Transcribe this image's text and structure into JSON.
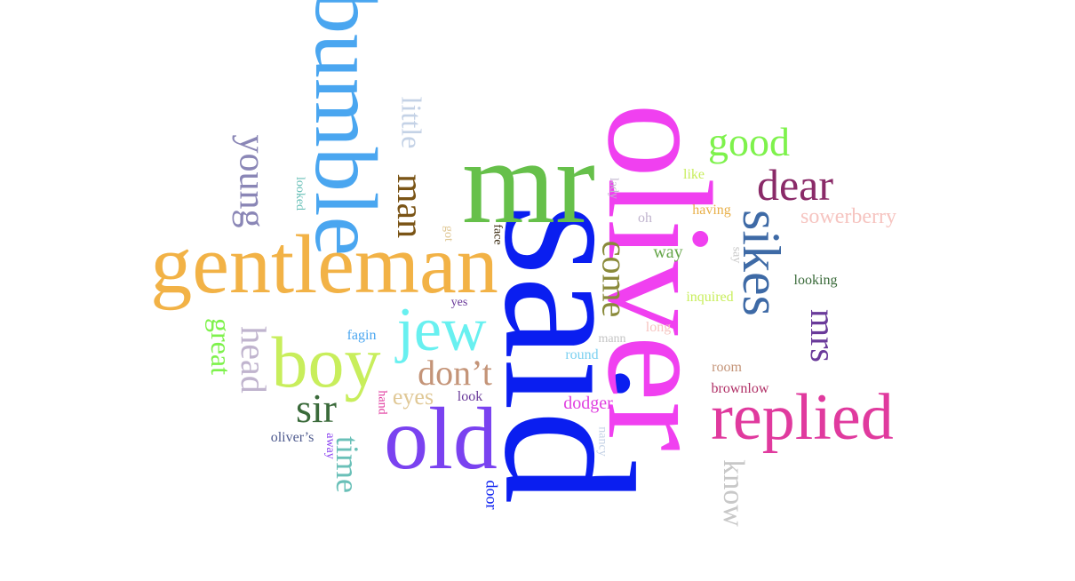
{
  "words": [
    {
      "text": "said",
      "color": "#0a1ef0",
      "rotated": true
    },
    {
      "text": "oliver",
      "color": "#f040f0",
      "rotated": true
    },
    {
      "text": "mr",
      "color": "#66c04a",
      "rotated": false
    },
    {
      "text": "bumble",
      "color": "#4aa6f0",
      "rotated": true
    },
    {
      "text": "gentleman",
      "color": "#f2b246",
      "rotated": false
    },
    {
      "text": "replied",
      "color": "#e03a9e",
      "rotated": false
    },
    {
      "text": "old",
      "color": "#7a42f0",
      "rotated": false
    },
    {
      "text": "jew",
      "color": "#68f0f0",
      "rotated": false
    },
    {
      "text": "boy",
      "color": "#c8ee5c",
      "rotated": false
    },
    {
      "text": "sikes",
      "color": "#3e6aa6",
      "rotated": true
    },
    {
      "text": "dear",
      "color": "#8a2a68",
      "rotated": false
    },
    {
      "text": "good",
      "color": "#7ef24c",
      "rotated": false
    },
    {
      "text": "man",
      "color": "#7a5416",
      "rotated": true
    },
    {
      "text": "come",
      "color": "#8a8a3a",
      "rotated": true
    },
    {
      "text": "young",
      "color": "#8a86b6",
      "rotated": true
    },
    {
      "text": "mrs",
      "color": "#6a3a9a",
      "rotated": true
    },
    {
      "text": "know",
      "color": "#c8c8c8",
      "rotated": true
    },
    {
      "text": "little",
      "color": "#c4d2e6",
      "rotated": true
    },
    {
      "text": "don’t",
      "color": "#c49478",
      "rotated": false
    },
    {
      "text": "sir",
      "color": "#3a6a3a",
      "rotated": false
    },
    {
      "text": "head",
      "color": "#c0b4ce",
      "rotated": true
    },
    {
      "text": "time",
      "color": "#6ac0b8",
      "rotated": true
    },
    {
      "text": "great",
      "color": "#7ef24c",
      "rotated": true
    },
    {
      "text": "sowerberry",
      "color": "#f6c4c0",
      "rotated": false
    },
    {
      "text": "eyes",
      "color": "#e0c896",
      "rotated": false
    },
    {
      "text": "dodger",
      "color": "#e040e0",
      "rotated": false
    },
    {
      "text": "brownlow",
      "color": "#b03066",
      "rotated": false
    },
    {
      "text": "way",
      "color": "#66a64a",
      "rotated": false
    },
    {
      "text": "looking",
      "color": "#3a6a3a",
      "rotated": false
    },
    {
      "text": "inquired",
      "color": "#c8ee5c",
      "rotated": false
    },
    {
      "text": "having",
      "color": "#e8b04a",
      "rotated": false
    },
    {
      "text": "room",
      "color": "#c49478",
      "rotated": false
    },
    {
      "text": "oliver’s",
      "color": "#4e5a8e",
      "rotated": false
    },
    {
      "text": "fagin",
      "color": "#4aa6f0",
      "rotated": false
    },
    {
      "text": "look",
      "color": "#6a3a9a",
      "rotated": false
    },
    {
      "text": "round",
      "color": "#7ad0f0",
      "rotated": false
    },
    {
      "text": "mann",
      "color": "#c4c4c4",
      "rotated": false
    },
    {
      "text": "long",
      "color": "#f6c4c0",
      "rotated": false
    },
    {
      "text": "like",
      "color": "#c8ee5c",
      "rotated": false
    },
    {
      "text": "oh",
      "color": "#c0b4ce",
      "rotated": false
    },
    {
      "text": "yes",
      "color": "#6a3a9a",
      "rotated": false
    },
    {
      "text": "lady",
      "color": "#c0b4ce",
      "rotated": true
    },
    {
      "text": "say",
      "color": "#c8c8c8",
      "rotated": true
    },
    {
      "text": "looked",
      "color": "#6ac0b8",
      "rotated": true
    },
    {
      "text": "got",
      "color": "#e0c896",
      "rotated": true
    },
    {
      "text": "face",
      "color": "#3a2a10",
      "rotated": true
    },
    {
      "text": "hand",
      "color": "#e03a9e",
      "rotated": true
    },
    {
      "text": "away",
      "color": "#8a42f0",
      "rotated": true
    },
    {
      "text": "nancy",
      "color": "#c4d2e6",
      "rotated": true
    },
    {
      "text": "door",
      "color": "#0a1ef0",
      "rotated": true
    }
  ]
}
